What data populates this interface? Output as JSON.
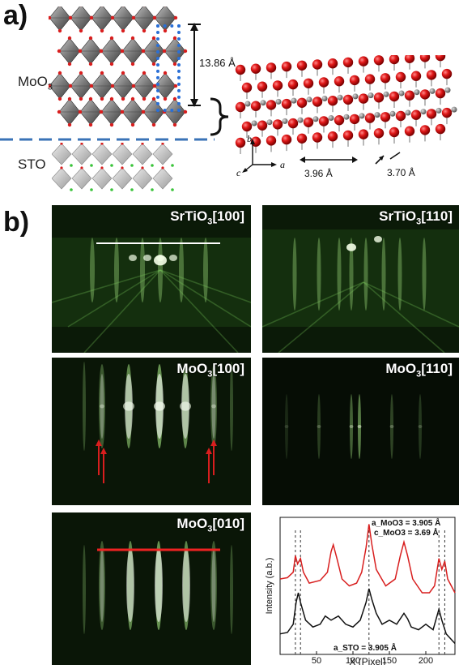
{
  "panels": {
    "a": "a)",
    "b": "b)"
  },
  "structure": {
    "layer_top_label": "MoO",
    "layer_top_sub": "3",
    "layer_bottom_label": "STO",
    "spacing_vertical": "13.86 Å",
    "spacing_a": "3.96 Å",
    "spacing_c": "3.70 Å",
    "axis_b": "b",
    "axis_a": "a",
    "axis_c": "c"
  },
  "rheed": {
    "sto100": {
      "prefix": "SrTiO",
      "sub": "3",
      "suffix": "[100]"
    },
    "sto110": {
      "prefix": "SrTiO",
      "sub": "3",
      "suffix": "[110]"
    },
    "moo100": {
      "prefix": "MoO",
      "sub": "3",
      "suffix": "[100]"
    },
    "moo110": {
      "prefix": "MoO",
      "sub": "3",
      "suffix": "[110]"
    },
    "moo010": {
      "prefix": "MoO",
      "sub": "3",
      "suffix": "[010]"
    }
  },
  "colors": {
    "red": "#d81e1e",
    "green": "#7fd35a",
    "dashed_blue": "#3a73b7",
    "box_blue": "#2a6fd6"
  },
  "chart_data": {
    "type": "line",
    "xlabel": "X (Pixel)",
    "ylabel": "Intensity (a.b.)",
    "xticks": [
      50,
      100,
      150,
      200
    ],
    "xlim": [
      0,
      240
    ],
    "annotation_top_1": "a_MoO3 = 3.905 Å",
    "annotation_top_2": "c_MoO3 = 3.69 Å",
    "annotation_bottom": "a_STO = 3.905 Å",
    "dashed_lines_x": [
      21,
      28,
      122,
      218,
      226
    ],
    "series": [
      {
        "color": "#d81e1e",
        "x": [
          0,
          10,
          18,
          21,
          24,
          28,
          32,
          40,
          55,
          65,
          70,
          73,
          78,
          85,
          95,
          105,
          112,
          118,
          122,
          126,
          132,
          145,
          158,
          165,
          170,
          175,
          182,
          195,
          205,
          212,
          218,
          222,
          226,
          230,
          240
        ],
        "y": [
          0.55,
          0.56,
          0.6,
          0.72,
          0.66,
          0.7,
          0.6,
          0.52,
          0.54,
          0.6,
          0.75,
          0.8,
          0.7,
          0.55,
          0.5,
          0.52,
          0.6,
          0.78,
          0.95,
          0.8,
          0.62,
          0.5,
          0.55,
          0.72,
          0.82,
          0.72,
          0.55,
          0.45,
          0.45,
          0.5,
          0.7,
          0.62,
          0.68,
          0.55,
          0.45
        ]
      },
      {
        "color": "#111111",
        "x": [
          0,
          10,
          18,
          22,
          25,
          28,
          35,
          45,
          55,
          62,
          70,
          80,
          90,
          100,
          110,
          118,
          122,
          126,
          132,
          140,
          150,
          160,
          170,
          175,
          180,
          190,
          200,
          210,
          218,
          222,
          228,
          240
        ],
        "y": [
          0.15,
          0.16,
          0.22,
          0.38,
          0.45,
          0.38,
          0.25,
          0.2,
          0.22,
          0.28,
          0.25,
          0.28,
          0.22,
          0.2,
          0.25,
          0.38,
          0.48,
          0.4,
          0.3,
          0.22,
          0.25,
          0.22,
          0.3,
          0.26,
          0.2,
          0.18,
          0.22,
          0.18,
          0.33,
          0.25,
          0.15,
          0.08
        ]
      }
    ]
  }
}
